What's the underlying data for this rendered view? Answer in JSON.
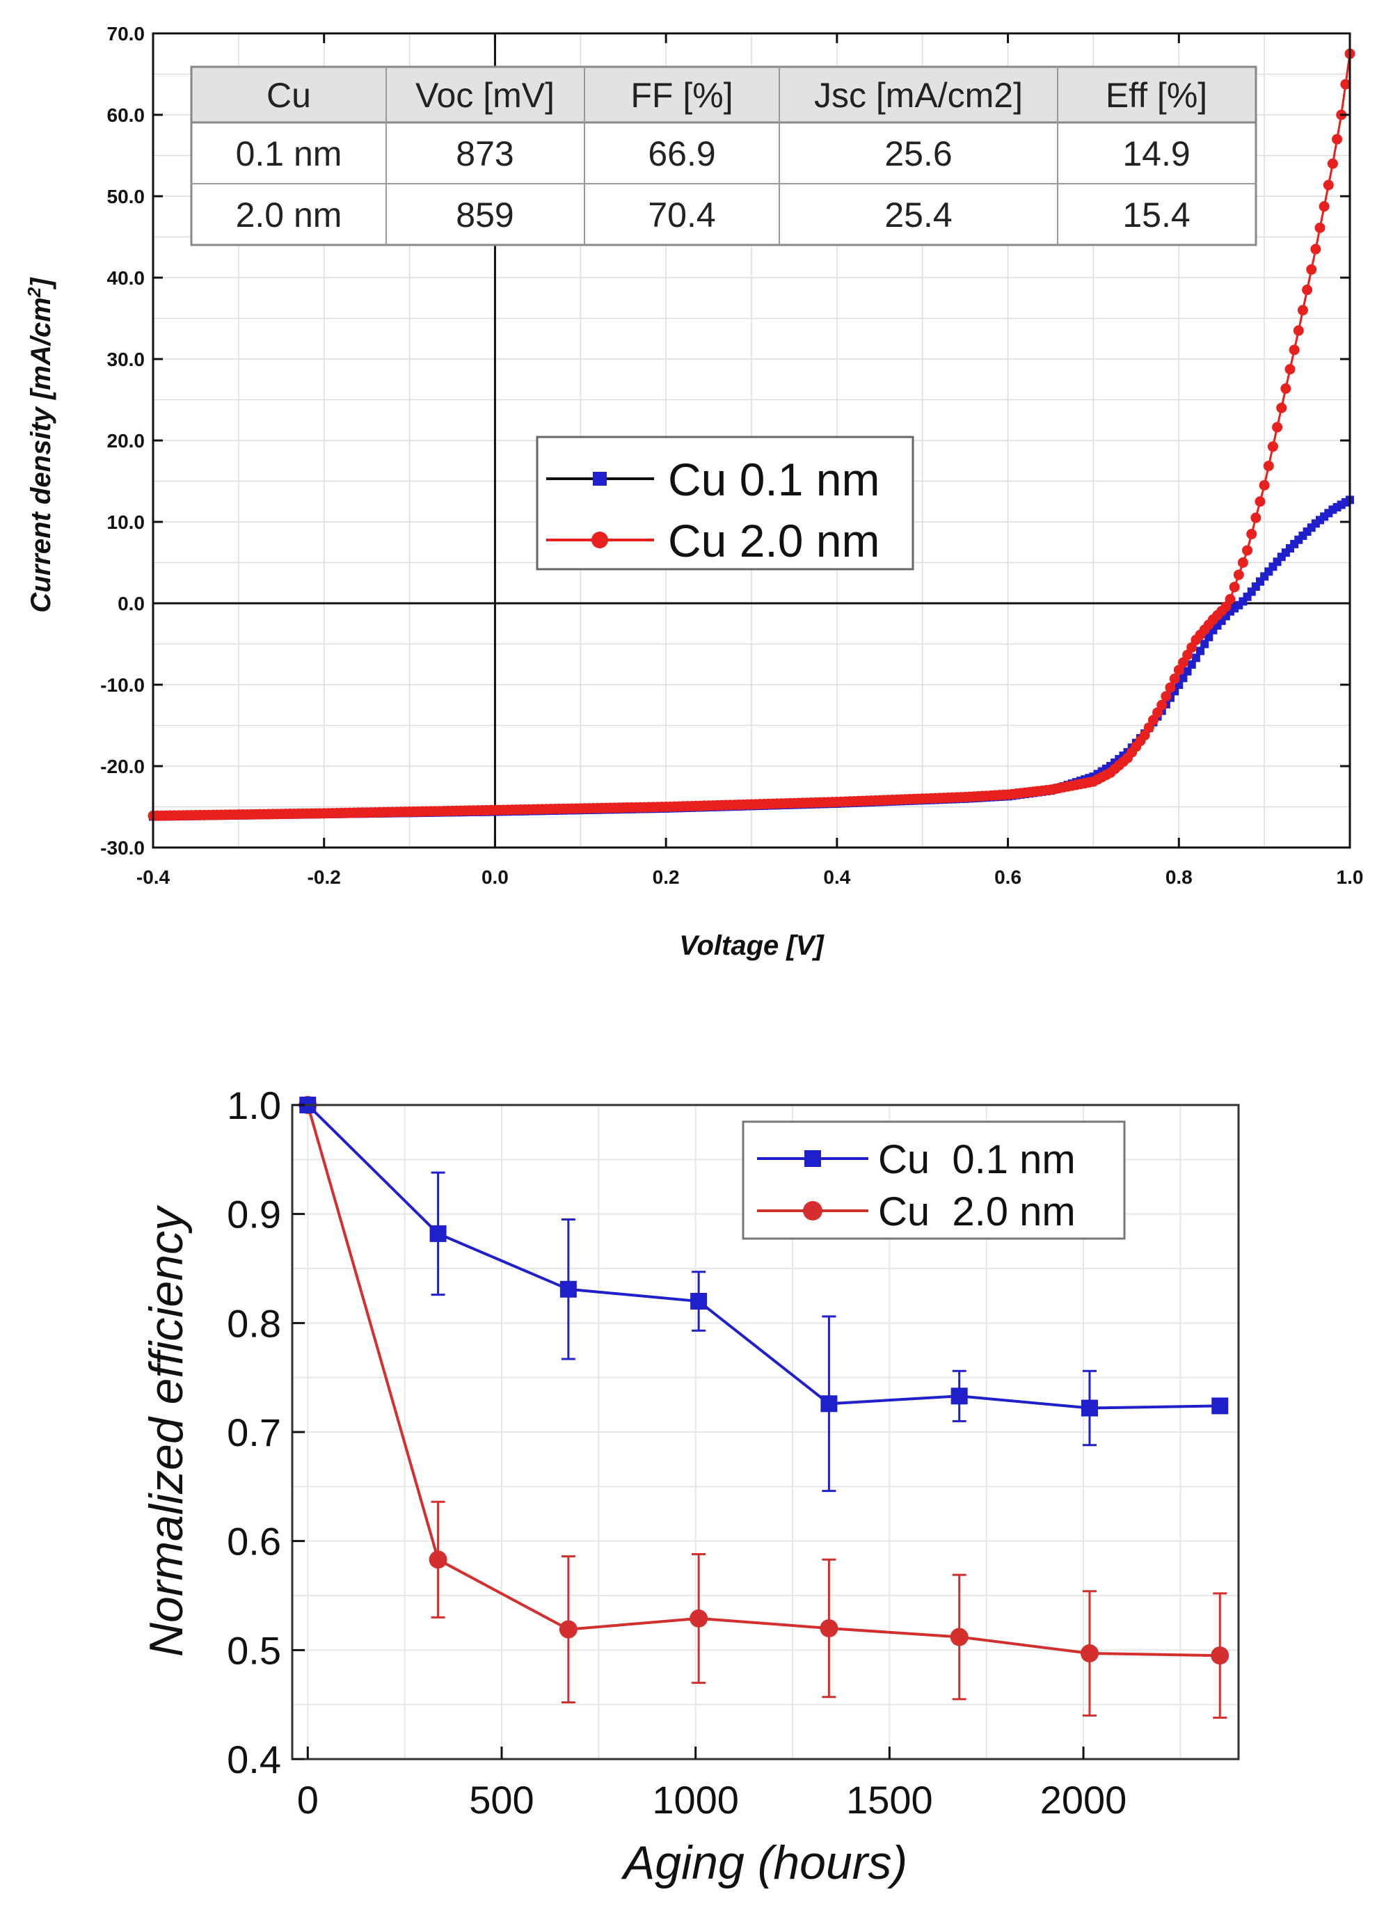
{
  "colors": {
    "blue": "#1f1fcc",
    "red": "#e8201e",
    "red2": "#d32f2f",
    "grid": "#dcdcdc",
    "axis": "#111111"
  },
  "chart_data": [
    {
      "type": "line",
      "title": "",
      "xlabel": "Voltage [V]",
      "ylabel": "Current density [mA/cm",
      "ylabel_sup": "2",
      "ylabel_end": "]",
      "xlim": [
        -0.4,
        1.0
      ],
      "ylim": [
        -30,
        70
      ],
      "xticks": [
        "-0.4",
        "-0.2",
        "0.0",
        "0.2",
        "0.4",
        "0.6",
        "0.8",
        "1.0"
      ],
      "yticks": [
        "-30.0",
        "-20.0",
        "-10.0",
        "0.0",
        "10.0",
        "20.0",
        "30.0",
        "40.0",
        "50.0",
        "60.0",
        "70.0"
      ],
      "grid": true,
      "legend": [
        "Cu 0.1 nm",
        "Cu 2.0 nm"
      ],
      "table": {
        "headers": [
          "Cu",
          "Voc [mV]",
          "FF [%]",
          "Jsc [mA/cm2]",
          "Eff [%]"
        ],
        "rows": [
          [
            "0.1 nm",
            "873",
            "66.9",
            "25.6",
            "14.9"
          ],
          [
            "2.0 nm",
            "859",
            "70.4",
            "25.4",
            "15.4"
          ]
        ]
      },
      "series": [
        {
          "name": "Cu 0.1 nm",
          "x": [
            -0.4,
            -0.2,
            0.0,
            0.2,
            0.4,
            0.55,
            0.6,
            0.65,
            0.7,
            0.72,
            0.74,
            0.76,
            0.78,
            0.8,
            0.82,
            0.84,
            0.86,
            0.873,
            0.88,
            0.9,
            0.92,
            0.94,
            0.96,
            0.98,
            1.0
          ],
          "y": [
            -26.2,
            -25.9,
            -25.6,
            -25.2,
            -24.6,
            -24.0,
            -23.7,
            -23.0,
            -21.3,
            -20.0,
            -18.3,
            -16.0,
            -13.2,
            -10.0,
            -6.7,
            -3.3,
            -1.0,
            0.0,
            0.8,
            3.3,
            5.7,
            7.8,
            9.8,
            11.5,
            12.7
          ]
        },
        {
          "name": "Cu 2.0 nm",
          "x": [
            -0.4,
            -0.2,
            0.0,
            0.2,
            0.4,
            0.55,
            0.6,
            0.65,
            0.7,
            0.72,
            0.74,
            0.76,
            0.78,
            0.8,
            0.82,
            0.84,
            0.859,
            0.86,
            0.88,
            0.9,
            0.92,
            0.94,
            0.96,
            0.98,
            0.99,
            1.0
          ],
          "y": [
            -26.1,
            -25.8,
            -25.4,
            -25.0,
            -24.4,
            -23.8,
            -23.5,
            -22.9,
            -21.9,
            -20.8,
            -19.0,
            -16.2,
            -12.5,
            -8.2,
            -4.5,
            -2.0,
            0.0,
            0.5,
            6.5,
            14.5,
            24.0,
            33.5,
            43.5,
            54.0,
            60.0,
            67.5
          ]
        }
      ]
    },
    {
      "type": "line",
      "title": "",
      "xlabel": "Aging (hours)",
      "ylabel": "Normalized efficiency",
      "xlim": [
        -40,
        2400
      ],
      "ylim": [
        0.4,
        1.0
      ],
      "xticks": [
        "0",
        "500",
        "1000",
        "1500",
        "2000"
      ],
      "yticks": [
        "0.4",
        "0.5",
        "0.6",
        "0.7",
        "0.8",
        "0.9",
        "1.0"
      ],
      "grid": true,
      "legend": [
        "Cu  0.1 nm",
        "Cu  2.0 nm"
      ],
      "series": [
        {
          "name": "Cu  0.1 nm",
          "x": [
            0,
            336,
            672,
            1008,
            1344,
            1680,
            2016,
            2352
          ],
          "y": [
            1.0,
            0.882,
            0.831,
            0.82,
            0.726,
            0.733,
            0.722,
            0.724
          ],
          "err": [
            0.0,
            0.056,
            0.064,
            0.027,
            0.08,
            0.023,
            0.034,
            0.006
          ]
        },
        {
          "name": "Cu  2.0 nm",
          "x": [
            0,
            336,
            672,
            1008,
            1344,
            1680,
            2016,
            2352
          ],
          "y": [
            1.0,
            0.583,
            0.519,
            0.529,
            0.52,
            0.512,
            0.497,
            0.495
          ],
          "err": [
            0.0,
            0.053,
            0.067,
            0.059,
            0.063,
            0.057,
            0.057,
            0.057
          ]
        }
      ]
    }
  ]
}
